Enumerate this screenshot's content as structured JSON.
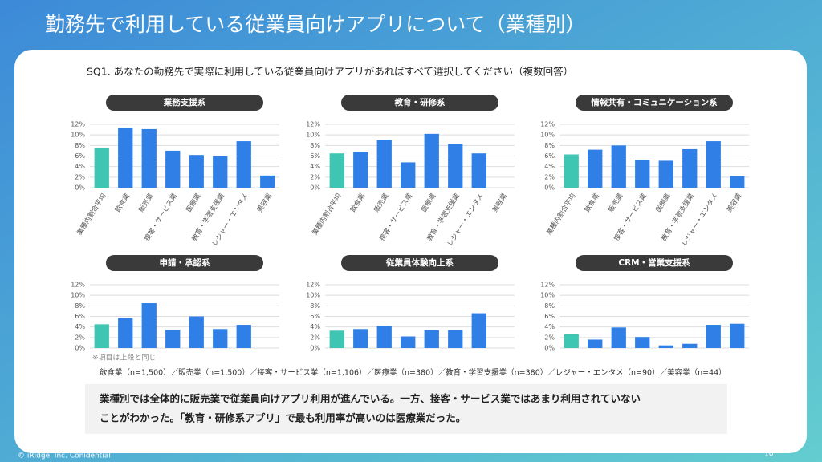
{
  "slide_title": "勤務先で利用している従業員向けアプリについて（業種別）",
  "question": "SQ1. あなたの勤務先で実際に利用している従業員向けアプリがあればすべて選択してください（複数回答）",
  "footnote": "※項目は上段と同じ",
  "sample_note": "飲食業（n=1,500）／販売業（n=1,500）／接客・サービス業（n=1,106）／医療業（n=380）／教育・学習支援業（n=380）／レジャー・エンタメ（n=90）／美容業（n=44）",
  "summary": [
    "業種別では全体的に販売業で従業員向けアプリ利用が進んでいる。一方、接客・サービス業ではあまり利用されていない",
    "ことがわかった。「教育・研修系アプリ」で最も利用率が高いのは医療業だった。"
  ],
  "copyright": "© iRidge, Inc. Conidential",
  "page_number": "10",
  "chart_data": [
    {
      "type": "bar",
      "title": "業務支援系",
      "categories": [
        "業種内割合平均",
        "飲食業",
        "販売業",
        "接客・サービス業",
        "医療業",
        "教育・学習支援業",
        "レジャー・エンタメ",
        "美容業"
      ],
      "values": [
        7.6,
        11.3,
        11.1,
        7.0,
        6.2,
        6.0,
        8.8,
        2.3
      ],
      "colors": [
        "#3ec6b3",
        "#2f7fe6",
        "#2f7fe6",
        "#2f7fe6",
        "#2f7fe6",
        "#2f7fe6",
        "#2f7fe6",
        "#2f7fe6"
      ],
      "ylim": [
        0,
        12
      ],
      "yticks": [
        {
          "value": 0,
          "label": "0%"
        },
        {
          "value": 2,
          "label": "2%"
        },
        {
          "value": 4,
          "label": "4%"
        },
        {
          "value": 6,
          "label": "6%"
        },
        {
          "value": 8,
          "label": "8%"
        },
        {
          "value": 10,
          "label": "10%"
        },
        {
          "value": 12,
          "label": "12%"
        }
      ],
      "grid": true
    },
    {
      "type": "bar",
      "title": "教育・研修系",
      "categories": [
        "業種内割合平均",
        "飲食業",
        "販売業",
        "接客・サービス業",
        "医療業",
        "教育・学習支援業",
        "レジャー・エンタメ",
        "美容業"
      ],
      "values": [
        6.5,
        6.8,
        9.1,
        4.8,
        10.2,
        8.3,
        6.5,
        0
      ],
      "colors": [
        "#3ec6b3",
        "#2f7fe6",
        "#2f7fe6",
        "#2f7fe6",
        "#2f7fe6",
        "#2f7fe6",
        "#2f7fe6",
        "#2f7fe6"
      ],
      "ylim": [
        0,
        12
      ],
      "yticks": [
        {
          "value": 0,
          "label": "0%"
        },
        {
          "value": 2,
          "label": "2%"
        },
        {
          "value": 4,
          "label": "4%"
        },
        {
          "value": 6,
          "label": "6%"
        },
        {
          "value": 8,
          "label": "8%"
        },
        {
          "value": 10,
          "label": "10%"
        },
        {
          "value": 12,
          "label": "12%"
        }
      ],
      "grid": true
    },
    {
      "type": "bar",
      "title": "情報共有・コミュニケーション系",
      "categories": [
        "業種内割合平均",
        "飲食業",
        "販売業",
        "接客・サービス業",
        "医療業",
        "教育・学習支援業",
        "レジャー・エンタメ",
        "美容業"
      ],
      "values": [
        6.3,
        7.2,
        8.0,
        5.3,
        5.1,
        7.3,
        8.8,
        2.2
      ],
      "colors": [
        "#3ec6b3",
        "#2f7fe6",
        "#2f7fe6",
        "#2f7fe6",
        "#2f7fe6",
        "#2f7fe6",
        "#2f7fe6",
        "#2f7fe6"
      ],
      "ylim": [
        0,
        12
      ],
      "yticks": [
        {
          "value": 0,
          "label": "0%"
        },
        {
          "value": 2,
          "label": "2%"
        },
        {
          "value": 4,
          "label": "4%"
        },
        {
          "value": 6,
          "label": "6%"
        },
        {
          "value": 8,
          "label": "8%"
        },
        {
          "value": 10,
          "label": "10%"
        },
        {
          "value": 12,
          "label": "12%"
        }
      ],
      "grid": true
    },
    {
      "type": "bar",
      "title": "申請・承認系",
      "categories": [
        null,
        null,
        null,
        null,
        null,
        null,
        null,
        null
      ],
      "values": [
        4.5,
        5.7,
        8.5,
        3.5,
        6.0,
        3.6,
        4.4,
        0
      ],
      "colors": [
        "#3ec6b3",
        "#2f7fe6",
        "#2f7fe6",
        "#2f7fe6",
        "#2f7fe6",
        "#2f7fe6",
        "#2f7fe6",
        "#2f7fe6"
      ],
      "ylim": [
        0,
        12
      ],
      "yticks": [
        {
          "value": 0,
          "label": "0%"
        },
        {
          "value": 2,
          "label": "2%"
        },
        {
          "value": 4,
          "label": "4%"
        },
        {
          "value": 6,
          "label": "6%"
        },
        {
          "value": 8,
          "label": "8%"
        },
        {
          "value": 10,
          "label": "10%"
        },
        {
          "value": 12,
          "label": "12%"
        }
      ],
      "grid": true
    },
    {
      "type": "bar",
      "title": "従業員体験向上系",
      "categories": [
        null,
        null,
        null,
        null,
        null,
        null,
        null,
        null
      ],
      "values": [
        3.3,
        3.6,
        4.2,
        2.2,
        3.4,
        3.4,
        6.6,
        0
      ],
      "colors": [
        "#3ec6b3",
        "#2f7fe6",
        "#2f7fe6",
        "#2f7fe6",
        "#2f7fe6",
        "#2f7fe6",
        "#2f7fe6",
        "#2f7fe6"
      ],
      "ylim": [
        0,
        12
      ],
      "yticks": [
        {
          "value": 0,
          "label": "0%"
        },
        {
          "value": 2,
          "label": "2%"
        },
        {
          "value": 4,
          "label": "4%"
        },
        {
          "value": 6,
          "label": "6%"
        },
        {
          "value": 8,
          "label": "8%"
        },
        {
          "value": 10,
          "label": "10%"
        },
        {
          "value": 12,
          "label": "12%"
        }
      ],
      "grid": true
    },
    {
      "type": "bar",
      "title": "CRM・営業支援系",
      "categories": [
        null,
        null,
        null,
        null,
        null,
        null,
        null,
        null
      ],
      "values": [
        2.6,
        1.6,
        3.9,
        2.1,
        0.5,
        0.8,
        4.4,
        4.6
      ],
      "colors": [
        "#3ec6b3",
        "#2f7fe6",
        "#2f7fe6",
        "#2f7fe6",
        "#2f7fe6",
        "#2f7fe6",
        "#2f7fe6",
        "#2f7fe6"
      ],
      "ylim": [
        0,
        12
      ],
      "yticks": [
        {
          "value": 0,
          "label": "0%"
        },
        {
          "value": 2,
          "label": "2%"
        },
        {
          "value": 4,
          "label": "4%"
        },
        {
          "value": 6,
          "label": "6%"
        },
        {
          "value": 8,
          "label": "8%"
        },
        {
          "value": 10,
          "label": "10%"
        },
        {
          "value": 12,
          "label": "12%"
        }
      ],
      "grid": true
    }
  ]
}
